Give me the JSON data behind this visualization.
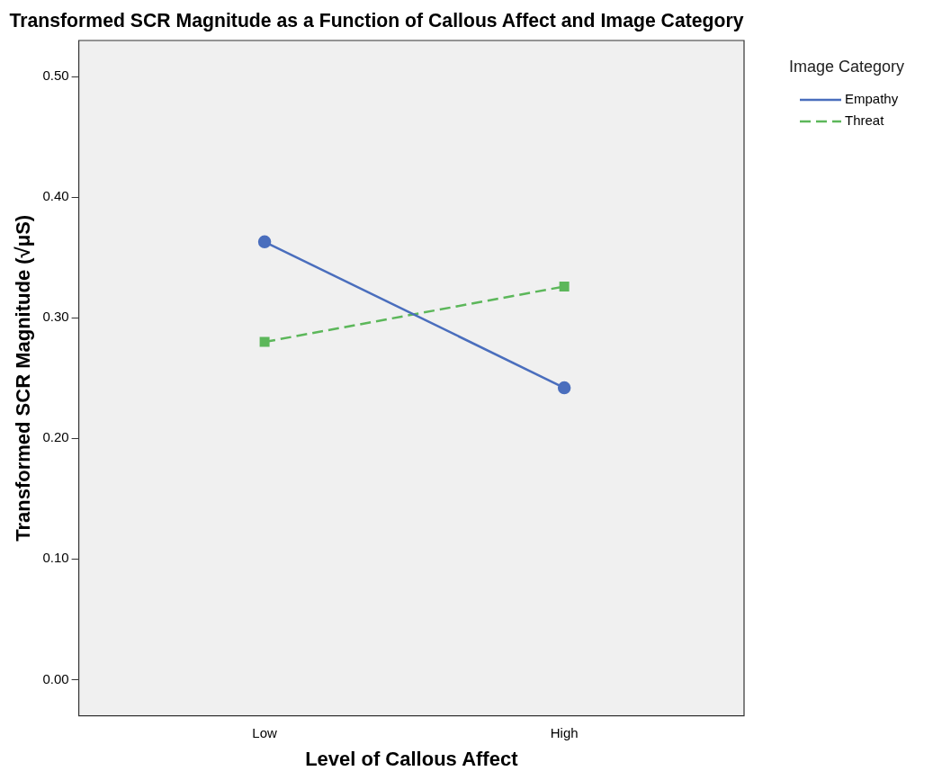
{
  "chart_data": {
    "type": "line",
    "title": "Transformed SCR Magnitude as a Function of Callous Affect and Image Category",
    "xlabel": "Level of Callous Affect",
    "ylabel": "Transformed SCR Magnitude (√μS)",
    "legend_title": "Image Category",
    "categories": [
      "Low",
      "High"
    ],
    "series": [
      {
        "name": "Empathy",
        "color": "#4a6ebd",
        "values": [
          0.363,
          0.242
        ],
        "marker": "circle",
        "line_style": "solid"
      },
      {
        "name": "Threat",
        "color": "#5cb75a",
        "values": [
          0.28,
          0.326
        ],
        "marker": "square",
        "line_style": "dashed"
      }
    ],
    "ylim": [
      -0.03,
      0.53
    ],
    "yticks": [
      {
        "value": 0,
        "label": "0.00"
      },
      {
        "value": 0.1,
        "label": "0.10"
      },
      {
        "value": 0.2,
        "label": "0.20"
      },
      {
        "value": 0.3,
        "label": "0.30"
      },
      {
        "value": 0.4,
        "label": "0.40"
      },
      {
        "value": 0.5,
        "label": "0.50"
      }
    ],
    "grid": false,
    "legend": "top right"
  }
}
